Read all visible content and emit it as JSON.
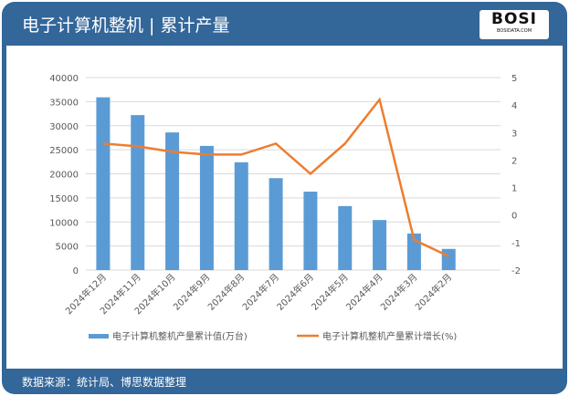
{
  "header": {
    "title": "电子计算机整机 | 累计产量",
    "logo": "BOSI",
    "logo_sub": "BOSIDATA.COM"
  },
  "footer": {
    "source": "数据来源：统计局、博思数据整理"
  },
  "chart_data": {
    "type": "bar+line",
    "categories": [
      "2024年12月",
      "2024年11月",
      "2024年10月",
      "2024年9月",
      "2024年8月",
      "2024年7月",
      "2024年6月",
      "2024年5月",
      "2024年4月",
      "2024年3月",
      "2024年2月"
    ],
    "series": [
      {
        "name": "电子计算机整机产量累计值(万台)",
        "type": "bar",
        "axis": "left",
        "color": "#5B9BD5",
        "values": [
          35900,
          32200,
          28600,
          25800,
          22400,
          19100,
          16300,
          13300,
          10400,
          7600,
          4400
        ]
      },
      {
        "name": "电子计算机整机产量累计增长(%)",
        "type": "line",
        "axis": "right",
        "color": "#ED7D31",
        "values": [
          2.6,
          2.5,
          2.3,
          2.2,
          2.2,
          2.6,
          1.5,
          2.6,
          4.2,
          -0.9,
          -1.5
        ]
      }
    ],
    "left_axis": {
      "ylim": [
        0,
        40000
      ],
      "ticks": [
        0,
        5000,
        10000,
        15000,
        20000,
        25000,
        30000,
        35000,
        40000
      ]
    },
    "right_axis": {
      "ylim": [
        -2,
        5
      ],
      "ticks": [
        -2,
        -1,
        0,
        1,
        2,
        3,
        4,
        5
      ]
    },
    "grid": true,
    "legend": "bottom"
  }
}
